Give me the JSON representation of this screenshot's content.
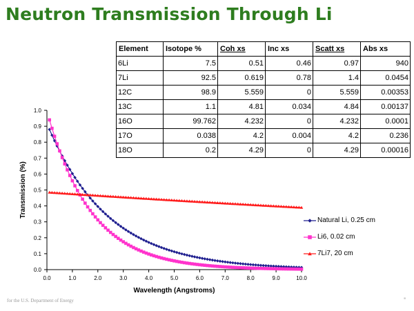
{
  "slide": {
    "title": "Neutron Transmission Through Li",
    "footer": "for the U.S. Department of Energy"
  },
  "table": {
    "headers": [
      "Element",
      "Isotope %",
      "Coh xs",
      "Inc xs",
      "Scatt xs",
      "Abs xs"
    ],
    "rows": [
      [
        "6Li",
        "7.5",
        "0.51",
        "0.46",
        "0.97",
        "940"
      ],
      [
        "7Li",
        "92.5",
        "0.619",
        "0.78",
        "1.4",
        "0.0454"
      ],
      [
        "12C",
        "98.9",
        "5.559",
        "0",
        "5.559",
        "0.00353"
      ],
      [
        "13C",
        "1.1",
        "4.81",
        "0.034",
        "4.84",
        "0.00137"
      ],
      [
        "16O",
        "99.762",
        "4.232",
        "0",
        "4.232",
        "0.0001"
      ],
      [
        "17O",
        "0.038",
        "4.2",
        "0.004",
        "4.2",
        "0.236"
      ],
      [
        "18O",
        "0.2",
        "4.29",
        "0",
        "4.29",
        "0.00016"
      ]
    ]
  },
  "chart_data": {
    "type": "line",
    "xlabel": "Wavelength (Angstroms)",
    "ylabel": "Transmission (%)",
    "xlim": [
      0,
      10
    ],
    "ylim": [
      0,
      1
    ],
    "xticks": [
      "0.0",
      "1.0",
      "2.0",
      "3.0",
      "4.0",
      "5.0",
      "6.0",
      "7.0",
      "8.0",
      "9.0",
      "10.0"
    ],
    "yticks": [
      "0.0",
      "0.1",
      "0.2",
      "0.3",
      "0.4",
      "0.5",
      "0.6",
      "0.7",
      "0.8",
      "0.9",
      "1.0"
    ],
    "grid": false,
    "legend_position": "right",
    "series": [
      {
        "name": "Natural Li, 0.25 cm",
        "color": "#1f1f8f",
        "marker": "diamond",
        "x_start": 0.1,
        "x_step": 0.1,
        "points": 100,
        "y_at_start": 0.88,
        "decay_per_angstrom": 0.42
      },
      {
        "name": "Li6, 0.02 cm",
        "color": "#ff33cc",
        "marker": "square",
        "x_start": 0.1,
        "x_step": 0.1,
        "points": 100,
        "y_at_start": 0.94,
        "decay_per_angstrom": 0.58
      },
      {
        "name": "7Li7, 20 cm",
        "color": "#ff1a1a",
        "marker": "triangle",
        "x_start": 0.1,
        "x_step": 0.1,
        "points": 100,
        "y_at_start": 0.485,
        "decay_per_angstrom": 0.022
      }
    ]
  }
}
